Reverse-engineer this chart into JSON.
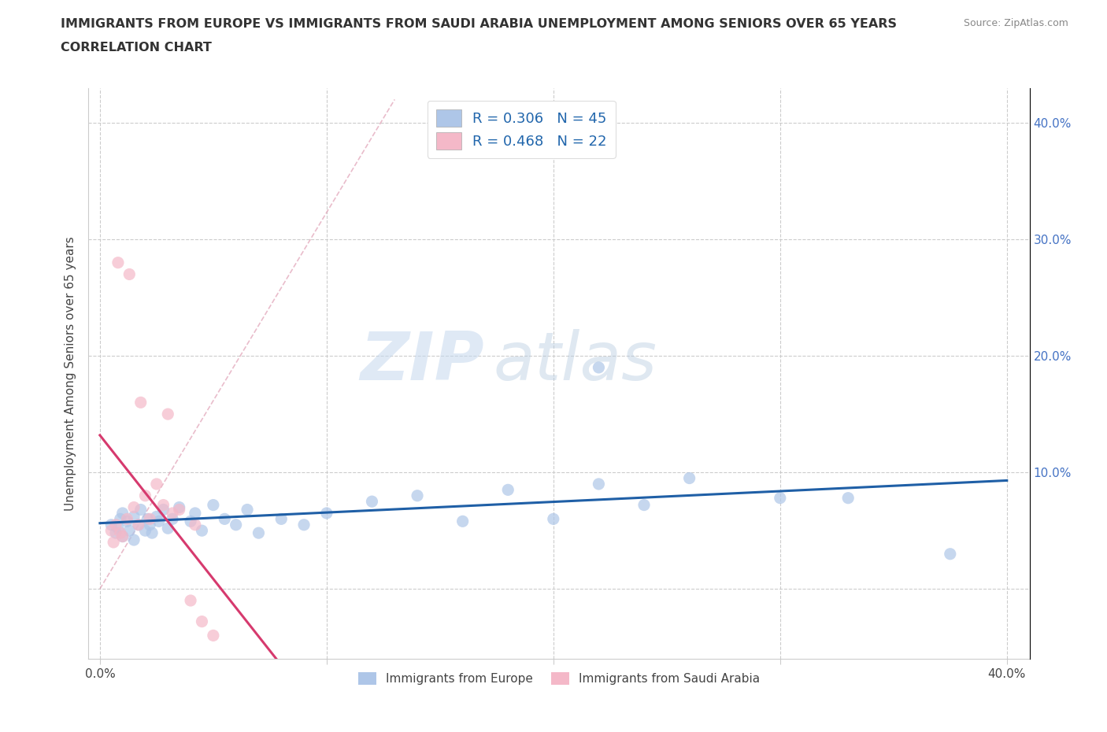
{
  "title_line1": "IMMIGRANTS FROM EUROPE VS IMMIGRANTS FROM SAUDI ARABIA UNEMPLOYMENT AMONG SENIORS OVER 65 YEARS",
  "title_line2": "CORRELATION CHART",
  "source": "Source: ZipAtlas.com",
  "ylabel": "Unemployment Among Seniors over 65 years",
  "xlim": [
    -0.005,
    0.41
  ],
  "ylim": [
    -0.06,
    0.43
  ],
  "color_europe": "#aec6e8",
  "color_saudi": "#f4b8c8",
  "color_line_europe": "#1f5fa6",
  "color_line_saudi": "#d63a6e",
  "color_diag": "#e8a0b0",
  "R_europe": 0.306,
  "N_europe": 45,
  "R_saudi": 0.468,
  "N_saudi": 22,
  "watermark_zip": "ZIP",
  "watermark_atlas": "atlas",
  "europe_x": [
    0.005,
    0.007,
    0.008,
    0.009,
    0.01,
    0.01,
    0.012,
    0.013,
    0.015,
    0.015,
    0.017,
    0.018,
    0.02,
    0.021,
    0.022,
    0.023,
    0.025,
    0.026,
    0.028,
    0.03,
    0.032,
    0.035,
    0.04,
    0.042,
    0.045,
    0.05,
    0.055,
    0.06,
    0.065,
    0.07,
    0.08,
    0.09,
    0.1,
    0.12,
    0.14,
    0.16,
    0.18,
    0.2,
    0.22,
    0.24,
    0.26,
    0.3,
    0.33,
    0.375,
    0.22
  ],
  "europe_y": [
    0.055,
    0.048,
    0.052,
    0.06,
    0.045,
    0.065,
    0.058,
    0.05,
    0.062,
    0.042,
    0.055,
    0.068,
    0.05,
    0.06,
    0.055,
    0.048,
    0.062,
    0.058,
    0.068,
    0.052,
    0.06,
    0.07,
    0.058,
    0.065,
    0.05,
    0.072,
    0.06,
    0.055,
    0.068,
    0.048,
    0.06,
    0.055,
    0.065,
    0.075,
    0.08,
    0.058,
    0.085,
    0.06,
    0.09,
    0.072,
    0.095,
    0.078,
    0.078,
    0.03,
    0.19
  ],
  "saudi_x": [
    0.005,
    0.006,
    0.007,
    0.008,
    0.009,
    0.01,
    0.012,
    0.013,
    0.015,
    0.017,
    0.018,
    0.02,
    0.022,
    0.025,
    0.028,
    0.03,
    0.032,
    0.035,
    0.04,
    0.042,
    0.045,
    0.05
  ],
  "saudi_y": [
    0.05,
    0.04,
    0.055,
    0.28,
    0.048,
    0.045,
    0.06,
    0.27,
    0.07,
    0.055,
    0.16,
    0.08,
    0.06,
    0.09,
    0.072,
    0.15,
    0.065,
    0.068,
    -0.01,
    0.055,
    -0.028,
    -0.04
  ]
}
